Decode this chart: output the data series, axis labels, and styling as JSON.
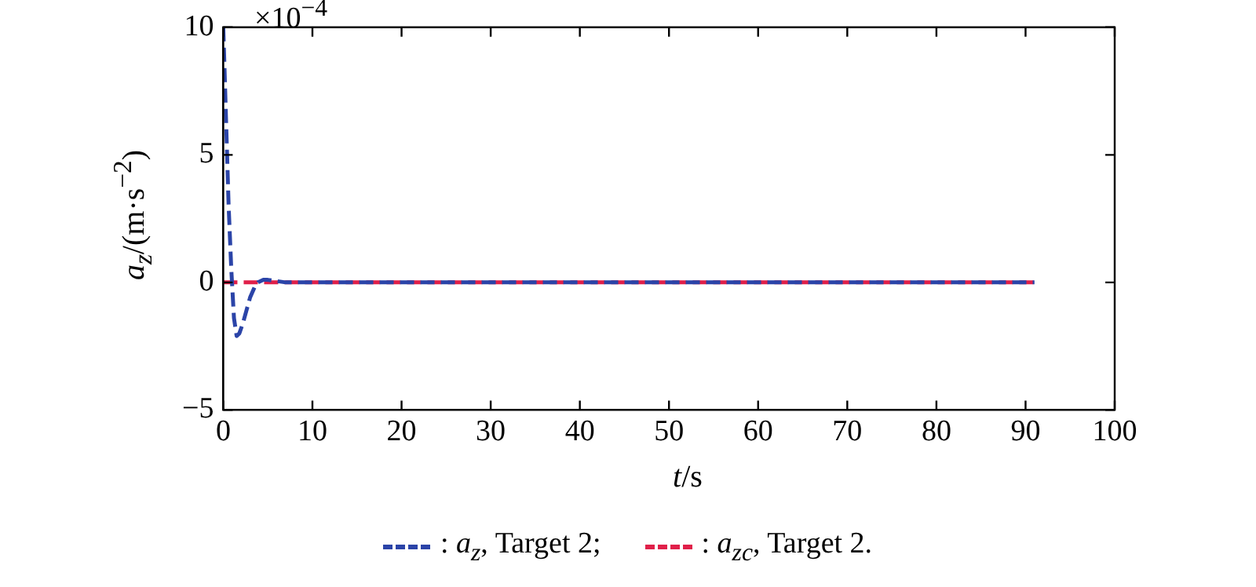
{
  "chart_data": {
    "type": "line",
    "xlabel": "t/s",
    "ylabel": "a$_{z}$/(m·s$^{−2}$)",
    "annotations": [
      "×10$^{−4}$"
    ],
    "xlim": [
      0,
      100
    ],
    "xticks": [
      0,
      10,
      20,
      30,
      40,
      50,
      60,
      70,
      80,
      90,
      100
    ],
    "ylim": [
      -5,
      10
    ],
    "yticks": [
      -5,
      0,
      5,
      10
    ],
    "grid": false,
    "legend": "bottom",
    "line_style": "dashed",
    "marker": "none",
    "series": [
      {
        "name": ": a$_{z}$, Target 2;",
        "color": "#2b44a8",
        "x": [
          0,
          0.3,
          0.6,
          0.9,
          1.2,
          1.5,
          1.8,
          2.2,
          2.6,
          3,
          3.5,
          3.9,
          4.5,
          5,
          6,
          7,
          8,
          91
        ],
        "values": [
          10,
          6.5,
          3,
          0.5,
          -1.4,
          -2.1,
          -2,
          -1.6,
          -1.1,
          -0.6,
          -0.2,
          0,
          0.1,
          0.1,
          0.05,
          0,
          0,
          0
        ]
      },
      {
        "name": ": a$_{zc}$, Target 2.",
        "color": "#e0204a",
        "x": [
          0,
          91
        ],
        "values": [
          0,
          0
        ]
      }
    ]
  }
}
